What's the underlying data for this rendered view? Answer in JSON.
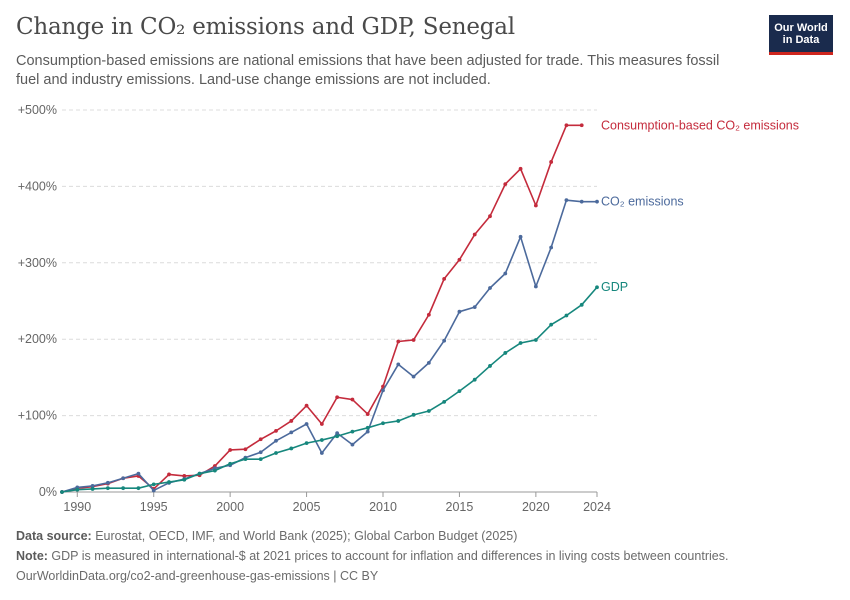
{
  "header": {
    "title": "Change in CO₂ emissions and GDP, Senegal",
    "subtitle": "Consumption-based emissions are national emissions that have been adjusted for trade. This measures fossil fuel and industry emissions. Land-use change emissions are not included.",
    "logo_line1": "Our World",
    "logo_line2": "in Data"
  },
  "footer": {
    "source_label": "Data source:",
    "source_text": " Eurostat, OECD, IMF, and World Bank (2025); Global Carbon Budget (2025)",
    "note_label": "Note:",
    "note_text": " GDP is measured in international-$ at 2021 prices to account for inflation and differences in living costs between countries.",
    "url": "OurWorldinData.org/co2-and-greenhouse-gas-emissions | CC BY"
  },
  "colors": {
    "consumption": "#c42b3c",
    "co2": "#4c6a9c",
    "gdp": "#16877d"
  },
  "chart_data": {
    "type": "line",
    "xlim": [
      1989,
      2024
    ],
    "ylim": [
      0,
      500
    ],
    "x_ticks": [
      1990,
      1995,
      2000,
      2005,
      2010,
      2015,
      2020,
      2024
    ],
    "y_ticks": [
      0,
      100,
      200,
      300,
      400,
      500
    ],
    "y_tick_labels": [
      "0%",
      "+100%",
      "+200%",
      "+300%",
      "+400%",
      "+500%"
    ],
    "grid": "horizontal dashed",
    "legend": "labels at line ends (right)",
    "series": [
      {
        "name": "Consumption-based CO₂ emissions",
        "color_key": "consumption",
        "x": [
          1989,
          1990,
          1991,
          1992,
          1993,
          1994,
          1995,
          1996,
          1997,
          1998,
          1999,
          2000,
          2001,
          2002,
          2003,
          2004,
          2005,
          2006,
          2007,
          2008,
          2009,
          2010,
          2011,
          2012,
          2013,
          2014,
          2015,
          2016,
          2017,
          2018,
          2019,
          2020,
          2021,
          2022,
          2023
        ],
        "values": [
          0,
          5,
          7,
          11,
          18,
          21,
          4,
          23,
          21,
          22,
          34,
          55,
          56,
          69,
          80,
          93,
          113,
          89,
          124,
          121,
          102,
          138,
          197,
          199,
          232,
          279,
          304,
          337,
          361,
          403,
          423,
          375,
          432,
          480,
          480
        ]
      },
      {
        "name": "CO₂ emissions",
        "color_key": "co2",
        "x": [
          1989,
          1990,
          1991,
          1992,
          1993,
          1994,
          1995,
          1996,
          1997,
          1998,
          1999,
          2000,
          2001,
          2002,
          2003,
          2004,
          2005,
          2006,
          2007,
          2008,
          2009,
          2010,
          2011,
          2012,
          2013,
          2014,
          2015,
          2016,
          2017,
          2018,
          2019,
          2020,
          2021,
          2022,
          2023,
          2024
        ],
        "values": [
          0,
          6,
          8,
          12,
          18,
          24,
          2,
          12,
          17,
          24,
          31,
          35,
          45,
          52,
          67,
          78,
          89,
          51,
          77,
          62,
          79,
          133,
          167,
          151,
          169,
          198,
          236,
          242,
          267,
          286,
          334,
          269,
          320,
          382,
          380,
          380
        ]
      },
      {
        "name": "GDP",
        "color_key": "gdp",
        "x": [
          1989,
          1990,
          1991,
          1992,
          1993,
          1994,
          1995,
          1996,
          1997,
          1998,
          1999,
          2000,
          2001,
          2002,
          2003,
          2004,
          2005,
          2006,
          2007,
          2008,
          2009,
          2010,
          2011,
          2012,
          2013,
          2014,
          2015,
          2016,
          2017,
          2018,
          2019,
          2020,
          2021,
          2022,
          2023,
          2024
        ],
        "values": [
          0,
          3,
          4,
          5,
          5,
          5,
          10,
          13,
          16,
          24,
          28,
          37,
          43,
          43,
          51,
          57,
          64,
          68,
          73,
          79,
          84,
          90,
          93,
          101,
          106,
          118,
          132,
          147,
          165,
          182,
          195,
          199,
          219,
          231,
          245,
          268
        ]
      }
    ]
  }
}
